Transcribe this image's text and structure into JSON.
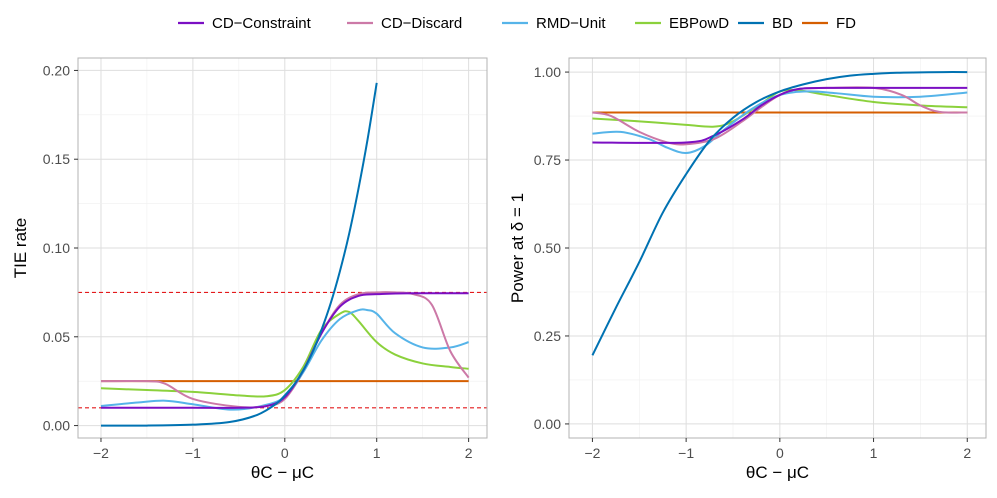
{
  "legend": {
    "title": "",
    "items": [
      {
        "label": "CD−Constraint",
        "color": "#7B0FC3"
      },
      {
        "label": "CD−Discard",
        "color": "#CC79A7"
      },
      {
        "label": "RMD−Unit",
        "color": "#56B4E9"
      },
      {
        "label": "EBPowD",
        "color": "#8BD13C"
      },
      {
        "label": "BD",
        "color": "#0072B2"
      },
      {
        "label": "FD",
        "color": "#D55E00"
      }
    ]
  },
  "chart_data": [
    {
      "type": "line",
      "xlabel": "θC − μC",
      "ylabel": "TIE rate",
      "xlim": [
        -2.25,
        2.2
      ],
      "ylim": [
        -0.007,
        0.207
      ],
      "xticks": [
        -2,
        -1,
        0,
        1,
        2
      ],
      "xtick_labels": [
        "−2",
        "−1",
        "0",
        "1",
        "2"
      ],
      "yticks": [
        0.0,
        0.05,
        0.1,
        0.15,
        0.2
      ],
      "ytick_labels": [
        "0.00",
        "0.05",
        "0.10",
        "0.15",
        "0.20"
      ],
      "grid": true,
      "reference_lines": [
        {
          "y": 0.075,
          "style": "dashed",
          "color": "#E41A1C"
        },
        {
          "y": 0.01,
          "style": "dashed",
          "color": "#E41A1C"
        }
      ],
      "series": [
        {
          "name": "FD",
          "x": [
            -2,
            2
          ],
          "y": [
            0.025,
            0.025
          ]
        },
        {
          "name": "EBPowD",
          "x": [
            -2,
            -1.5,
            -1,
            -0.5,
            -0.2,
            0,
            0.2,
            0.4,
            0.6,
            0.7,
            0.8,
            1.0,
            1.2,
            1.5,
            1.8,
            2.0
          ],
          "y": [
            0.021,
            0.02,
            0.019,
            0.017,
            0.0165,
            0.02,
            0.033,
            0.054,
            0.063,
            0.064,
            0.059,
            0.047,
            0.04,
            0.035,
            0.033,
            0.032
          ]
        },
        {
          "name": "RMD−Unit",
          "x": [
            -2,
            -1.6,
            -1.3,
            -1.0,
            -0.6,
            -0.3,
            0,
            0.2,
            0.4,
            0.6,
            0.8,
            0.9,
            1.0,
            1.2,
            1.5,
            1.8,
            2.0
          ],
          "y": [
            0.011,
            0.013,
            0.014,
            0.012,
            0.009,
            0.0105,
            0.016,
            0.03,
            0.048,
            0.06,
            0.065,
            0.065,
            0.063,
            0.052,
            0.044,
            0.044,
            0.047
          ]
        },
        {
          "name": "CD−Discard",
          "x": [
            -2,
            -1.5,
            -1.3,
            -1.0,
            -0.5,
            -0.2,
            0,
            0.2,
            0.4,
            0.6,
            0.8,
            1.0,
            1.2,
            1.4,
            1.6,
            1.8,
            2.0
          ],
          "y": [
            0.025,
            0.025,
            0.0235,
            0.015,
            0.0105,
            0.011,
            0.015,
            0.031,
            0.052,
            0.068,
            0.074,
            0.075,
            0.075,
            0.074,
            0.068,
            0.042,
            0.027
          ]
        },
        {
          "name": "CD−Constraint",
          "x": [
            -2,
            -1.0,
            -0.5,
            -0.2,
            0,
            0.2,
            0.4,
            0.6,
            0.8,
            1.0,
            1.4,
            2.0
          ],
          "y": [
            0.01,
            0.01,
            0.01,
            0.011,
            0.016,
            0.031,
            0.052,
            0.067,
            0.073,
            0.074,
            0.0745,
            0.0745
          ]
        },
        {
          "name": "BD",
          "x": [
            -2,
            -1.5,
            -1.0,
            -0.6,
            -0.3,
            -0.1,
            0,
            0.1,
            0.2,
            0.3,
            0.4,
            0.5,
            0.6,
            0.7,
            0.8,
            0.9,
            1.0
          ],
          "y": [
            0.0,
            0.0,
            0.0005,
            0.002,
            0.006,
            0.012,
            0.017,
            0.023,
            0.031,
            0.041,
            0.054,
            0.069,
            0.087,
            0.108,
            0.133,
            0.161,
            0.193
          ]
        }
      ]
    },
    {
      "type": "line",
      "xlabel": "θC − μC",
      "ylabel": "Power at δ = 1",
      "xlim": [
        -2.25,
        2.2
      ],
      "ylim": [
        -0.04,
        1.04
      ],
      "xticks": [
        -2,
        -1,
        0,
        1,
        2
      ],
      "xtick_labels": [
        "−2",
        "−1",
        "0",
        "1",
        "2"
      ],
      "yticks": [
        0.0,
        0.25,
        0.5,
        0.75,
        1.0
      ],
      "ytick_labels": [
        "0.00",
        "0.25",
        "0.50",
        "0.75",
        "1.00"
      ],
      "grid": true,
      "reference_lines": [],
      "series": [
        {
          "name": "FD",
          "x": [
            -2,
            2
          ],
          "y": [
            0.885,
            0.885
          ]
        },
        {
          "name": "EBPowD",
          "x": [
            -2,
            -1.5,
            -1.0,
            -0.7,
            -0.5,
            -0.2,
            0,
            0.2,
            0.5,
            1.0,
            1.5,
            2.0
          ],
          "y": [
            0.868,
            0.86,
            0.85,
            0.845,
            0.86,
            0.91,
            0.945,
            0.948,
            0.935,
            0.915,
            0.905,
            0.9
          ]
        },
        {
          "name": "RMD−Unit",
          "x": [
            -2,
            -1.7,
            -1.4,
            -1.2,
            -1.0,
            -0.8,
            -0.6,
            -0.3,
            0,
            0.3,
            0.6,
            1.0,
            1.5,
            2.0
          ],
          "y": [
            0.825,
            0.83,
            0.81,
            0.785,
            0.77,
            0.79,
            0.835,
            0.895,
            0.935,
            0.945,
            0.94,
            0.93,
            0.93,
            0.942
          ]
        },
        {
          "name": "CD−Discard",
          "x": [
            -2,
            -1.8,
            -1.5,
            -1.2,
            -1.0,
            -0.7,
            -0.4,
            -0.2,
            0,
            0.2,
            0.5,
            1.0,
            1.3,
            1.5,
            1.7,
            2.0
          ],
          "y": [
            0.885,
            0.875,
            0.83,
            0.8,
            0.795,
            0.81,
            0.86,
            0.9,
            0.935,
            0.952,
            0.955,
            0.955,
            0.935,
            0.905,
            0.887,
            0.885
          ]
        },
        {
          "name": "CD−Constraint",
          "x": [
            -2,
            -1.0,
            -0.7,
            -0.4,
            -0.2,
            0,
            0.2,
            0.5,
            1.0,
            2.0
          ],
          "y": [
            0.8,
            0.8,
            0.82,
            0.865,
            0.905,
            0.935,
            0.952,
            0.955,
            0.955,
            0.955
          ]
        },
        {
          "name": "BD",
          "x": [
            -2,
            -1.75,
            -1.5,
            -1.25,
            -1.0,
            -0.75,
            -0.5,
            -0.25,
            0,
            0.25,
            0.5,
            0.75,
            1.0,
            1.25,
            1.5,
            1.75,
            2.0
          ],
          "y": [
            0.195,
            0.33,
            0.46,
            0.6,
            0.71,
            0.805,
            0.87,
            0.915,
            0.945,
            0.965,
            0.98,
            0.99,
            0.995,
            0.998,
            0.999,
            1.0,
            1.0
          ]
        }
      ]
    }
  ]
}
